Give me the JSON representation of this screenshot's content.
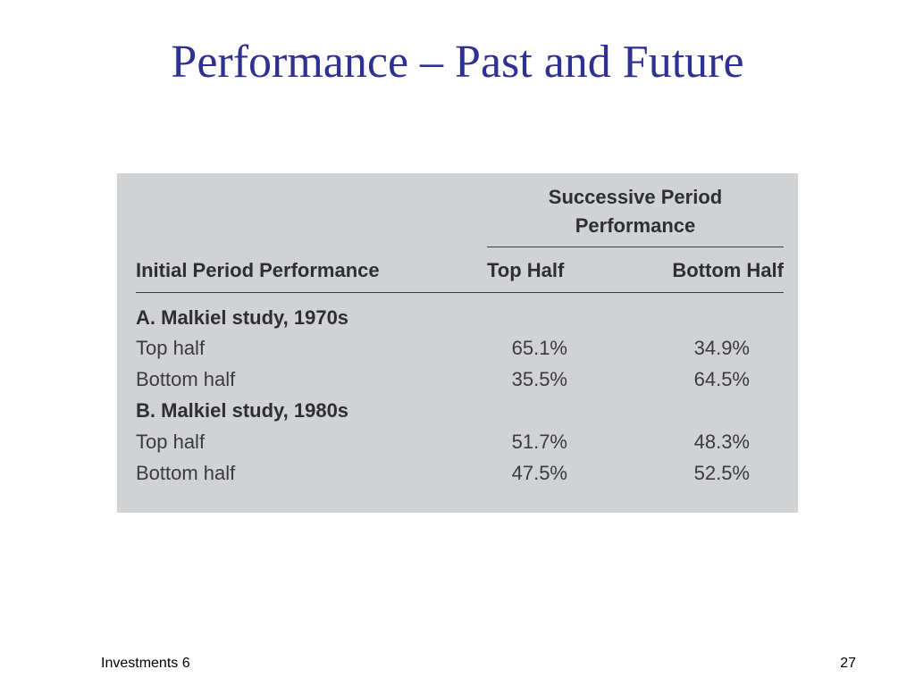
{
  "slide": {
    "title": "Performance – Past and Future",
    "footer_left": "Investments 6",
    "page_number": "27"
  },
  "table": {
    "group_header_line1": "Successive Period",
    "group_header_line2": "Performance",
    "col_initial": "Initial Period Performance",
    "col_top": "Top Half",
    "col_bottom": "Bottom Half",
    "sections": [
      {
        "heading": "A. Malkiel study, 1970s",
        "rows": [
          {
            "label": "Top half",
            "top": "65.1%",
            "bottom": "34.9%"
          },
          {
            "label": "Bottom half",
            "top": "35.5%",
            "bottom": "64.5%"
          }
        ]
      },
      {
        "heading": "B. Malkiel study, 1980s",
        "rows": [
          {
            "label": "Top half",
            "top": "51.7%",
            "bottom": "48.3%"
          },
          {
            "label": "Bottom half",
            "top": "47.5%",
            "bottom": "52.5%"
          }
        ]
      }
    ]
  }
}
